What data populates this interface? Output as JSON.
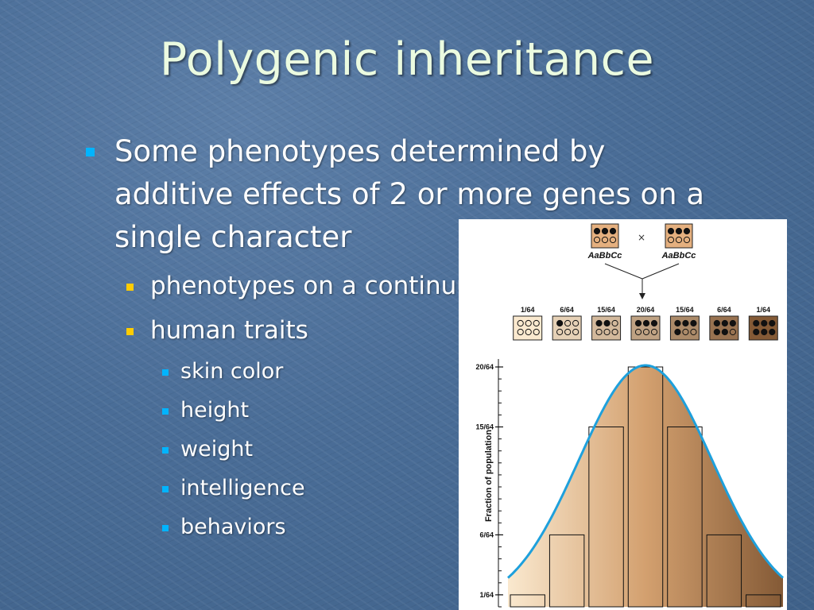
{
  "slide": {
    "title": "Polygenic inheritance",
    "bullet_main_lines": [
      "Some phenotypes determined by",
      "additive effects of 2 or more genes on a",
      "single character"
    ],
    "sub_bullets": [
      "phenotypes on a continuum",
      "human traits"
    ],
    "traits": [
      "skin color",
      "height",
      "weight",
      "intelligence",
      "behaviors"
    ],
    "colors": {
      "title": "#ebfbe0",
      "bullet_level1": "#00b4ff",
      "bullet_level2": "#ffcc00",
      "bullet_level3": "#00b4ff",
      "background": "#4a6d97"
    }
  },
  "figure": {
    "parents": [
      {
        "genotype": "AaBbCc",
        "dark_alleles": 3
      },
      {
        "genotype": "AaBbCc",
        "dark_alleles": 3
      }
    ],
    "cross_symbol": "×",
    "y_axis_label": "Fraction of population",
    "chart_data": {
      "type": "bar",
      "categories": [
        "0",
        "1",
        "2",
        "3",
        "4",
        "5",
        "6"
      ],
      "category_dark_alleles": [
        0,
        1,
        2,
        3,
        4,
        5,
        6
      ],
      "fraction_labels": [
        "1/64",
        "6/64",
        "15/64",
        "20/64",
        "15/64",
        "6/64",
        "1/64"
      ],
      "values": [
        1,
        6,
        15,
        20,
        15,
        6,
        1
      ],
      "denominator": 64,
      "ylim": [
        0,
        20
      ],
      "y_ticks": [
        1,
        6,
        15,
        20
      ],
      "y_tick_labels": [
        "1/64",
        "6/64",
        "15/64",
        "20/64"
      ],
      "curve": "bell",
      "curve_color": "#1ea0dc",
      "fill_light": "#fae9cf",
      "fill_dark": "#845a36"
    }
  }
}
